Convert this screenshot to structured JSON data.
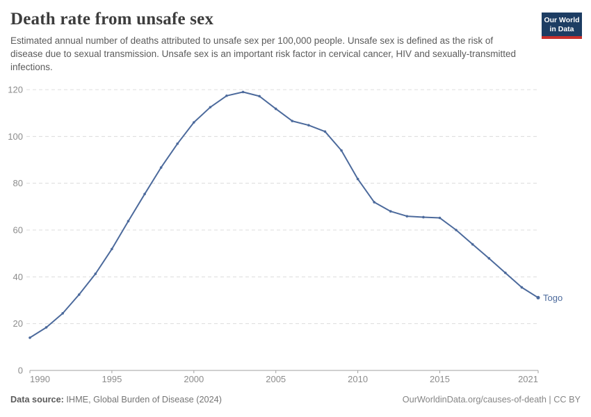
{
  "header": {
    "title": "Death rate from unsafe sex",
    "subtitle": "Estimated annual number of deaths attributed to unsafe sex per 100,000 people. Unsafe sex is defined as the risk of disease due to sexual transmission. Unsafe sex is an important risk factor in cervical cancer, HIV and sexually-transmitted infections."
  },
  "logo": {
    "line1": "Our World",
    "line2": "in Data",
    "bg_color": "#1d3d63",
    "accent_color": "#c9302c"
  },
  "chart_data": {
    "type": "line",
    "title": "Death rate from unsafe sex",
    "xlabel": "",
    "ylabel": "",
    "xlim": [
      1990,
      2021
    ],
    "ylim": [
      0,
      120
    ],
    "xticks": [
      1990,
      1995,
      2000,
      2005,
      2010,
      2015,
      2021
    ],
    "yticks": [
      0,
      20,
      40,
      60,
      80,
      100,
      120
    ],
    "grid": "horizontal-dashed",
    "legend_position": "end-of-line-label",
    "x": [
      1990,
      1991,
      1992,
      1993,
      1994,
      1995,
      1996,
      1997,
      1998,
      1999,
      2000,
      2001,
      2002,
      2003,
      2004,
      2005,
      2006,
      2007,
      2008,
      2009,
      2010,
      2011,
      2012,
      2013,
      2014,
      2015,
      2016,
      2017,
      2018,
      2019,
      2020,
      2021
    ],
    "series": [
      {
        "name": "Togo",
        "color": "#4c6a9c",
        "values": [
          14.0,
          18.4,
          24.4,
          32.4,
          41.3,
          51.9,
          63.8,
          75.4,
          86.7,
          96.9,
          106.0,
          112.5,
          117.4,
          119.0,
          117.2,
          111.8,
          106.6,
          104.8,
          102.1,
          94.0,
          81.8,
          71.9,
          68.0,
          65.9,
          65.5,
          65.2,
          60.0,
          53.9,
          47.9,
          41.7,
          35.5,
          31.1
        ]
      }
    ]
  },
  "footer": {
    "datasource_label": "Data source:",
    "datasource_value": "IHME, Global Burden of Disease (2024)",
    "credit": "OurWorldinData.org/causes-of-death | CC BY"
  }
}
